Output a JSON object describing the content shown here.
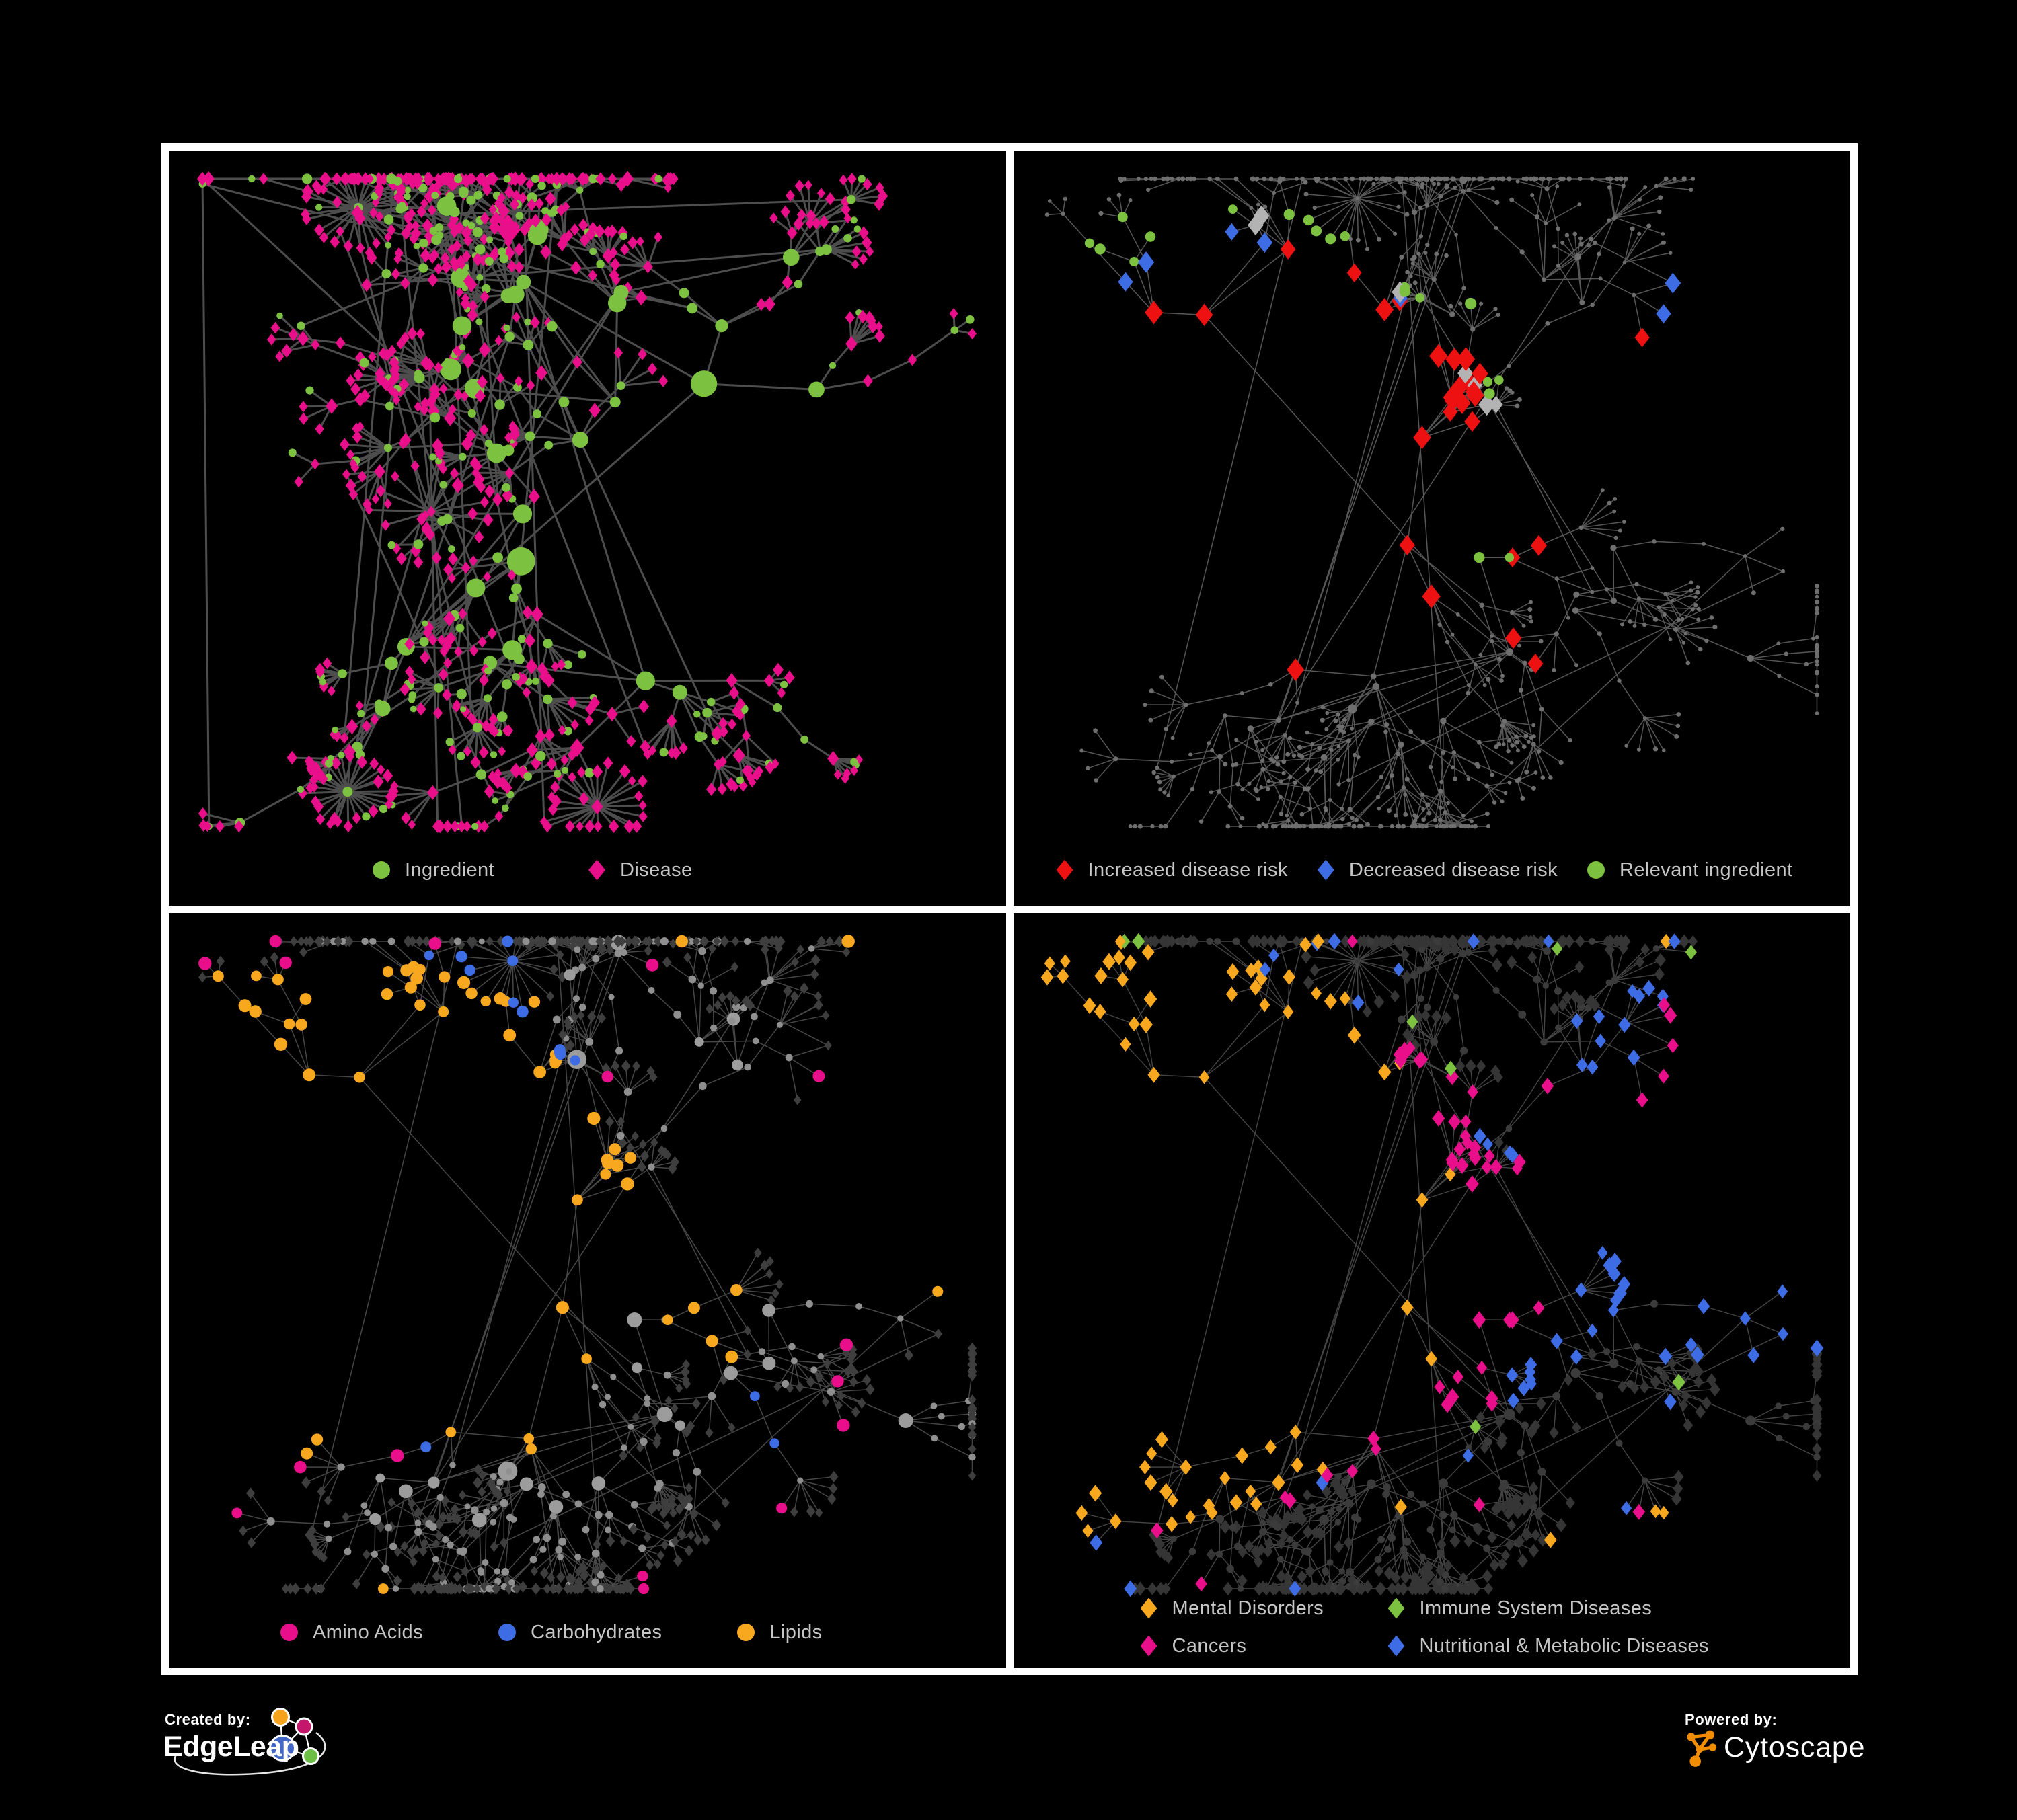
{
  "figure": {
    "background": "#000000",
    "frame_color": "#FFFFFF",
    "legend_text_color": "#C6C6C6"
  },
  "palette": {
    "green": "#7DC141",
    "pink": "#E90F8B",
    "red": "#ED1111",
    "blue": "#3D6CE5",
    "orange": "#F7A81E",
    "silver": "#B3B3B3",
    "gray_light": "#9C9C9C",
    "gray_dark": "#3B3B3B"
  },
  "panels": [
    {
      "id": "ingredient-disease-network",
      "legend": {
        "items": [
          {
            "label": "Ingredient",
            "shape": "circle",
            "color": "#7DC141"
          },
          {
            "label": "Disease",
            "shape": "diamond",
            "color": "#E90F8B"
          }
        ]
      },
      "network": {
        "seed": 12,
        "clusters": 9,
        "hubs": [
          2,
          5
        ],
        "branches": [
          2,
          5
        ],
        "chain": [
          1,
          3
        ],
        "fan": [
          2,
          8
        ],
        "big_fan_prob": 0.055,
        "big_fan": [
          15,
          32
        ],
        "step": [
          36,
          74
        ],
        "cross": 24,
        "tendrils": 6,
        "edge": {
          "color": "#6E6E6E",
          "width": 3,
          "opacity": 0.7
        },
        "hub": [
          {
            "shape": "circle",
            "color": "#7DC141",
            "rmin": 7,
            "rmax": 16,
            "p": 0.85
          },
          {
            "shape": "diamond",
            "color": "#E90F8B",
            "rmin": 7,
            "rmax": 11,
            "p": 0.15
          }
        ],
        "chain_nodes": [
          {
            "shape": "circle",
            "color": "#7DC141",
            "rmin": 5,
            "rmax": 8,
            "p": 0.48
          },
          {
            "shape": "diamond",
            "color": "#E90F8B",
            "rmin": 5.5,
            "rmax": 8,
            "p": 0.52
          }
        ],
        "leaf": [
          {
            "shape": "diamond",
            "color": "#E90F8B",
            "rmin": 5,
            "rmax": 7,
            "p": 0.84
          },
          {
            "shape": "circle",
            "color": "#7DC141",
            "rmin": 4.5,
            "rmax": 6.5,
            "p": 0.16
          }
        ],
        "highlights": []
      }
    },
    {
      "id": "disease-risk-network",
      "legend": {
        "items": [
          {
            "label": "Increased disease risk",
            "shape": "diamond",
            "color": "#ED1111"
          },
          {
            "label": "Decreased disease risk",
            "shape": "diamond",
            "color": "#3D6CE5"
          },
          {
            "label": "Relevant ingredient",
            "shape": "circle",
            "color": "#7DC141"
          }
        ]
      },
      "network": {
        "seed": 31,
        "clusters": 8,
        "hubs": [
          2,
          4
        ],
        "branches": [
          2,
          5
        ],
        "chain": [
          1,
          3
        ],
        "fan": [
          2,
          7
        ],
        "big_fan_prob": 0.05,
        "big_fan": [
          14,
          28
        ],
        "step": [
          40,
          85
        ],
        "cross": 10,
        "tendrils": 8,
        "edge": {
          "color": "#7C7C7C",
          "width": 1.5,
          "opacity": 0.7
        },
        "hub": [
          {
            "shape": "circle",
            "color": "#6E6E6E",
            "rmin": 3.2,
            "rmax": 5.5,
            "p": 1
          }
        ],
        "chain_nodes": [
          {
            "shape": "circle",
            "color": "#6E6E6E",
            "rmin": 2.8,
            "rmax": 3.6,
            "p": 1
          }
        ],
        "leaf": [
          {
            "shape": "circle",
            "color": "#6E6E6E",
            "rmin": 2.8,
            "rmax": 3.6,
            "p": 1
          }
        ],
        "highlights": [
          {
            "shape": "diamond",
            "color": "#ED1111",
            "r": 10.5,
            "groups": [
              [
                0.3,
                0.33,
                0.05,
                6
              ],
              [
                0.42,
                0.38,
                0.06,
                7
              ],
              [
                0.52,
                0.33,
                0.05,
                5
              ],
              [
                0.36,
                0.5,
                0.04,
                4
              ],
              [
                0.56,
                0.47,
                0.05,
                3
              ],
              [
                0.63,
                0.76,
                0.03,
                2
              ],
              [
                0.7,
                0.3,
                0.02,
                1
              ]
            ]
          },
          {
            "shape": "diamond",
            "color": "#3D6CE5",
            "r": 9.5,
            "groups": [
              [
                0.3,
                0.36,
                0.035,
                5
              ],
              [
                0.88,
                0.26,
                0.012,
                2
              ]
            ]
          },
          {
            "shape": "diamond",
            "color": "#B3B3B3",
            "r": 9.5,
            "groups": [
              [
                0.27,
                0.29,
                0.02,
                2
              ],
              [
                0.45,
                0.45,
                0.06,
                4
              ],
              [
                0.56,
                0.4,
                0.02,
                1
              ]
            ]
          },
          {
            "shape": "circle",
            "color": "#7DC141",
            "r": 7.5,
            "groups": [
              [
                0.3,
                0.3,
                0.06,
                8
              ],
              [
                0.45,
                0.38,
                0.07,
                7
              ],
              [
                0.2,
                0.4,
                0.05,
                3
              ],
              [
                0.55,
                0.55,
                0.05,
                2
              ],
              [
                0.12,
                0.35,
                0.02,
                1
              ]
            ]
          }
        ]
      }
    },
    {
      "id": "nutrient-class-network",
      "legend": {
        "items": [
          {
            "label": "Amino Acids",
            "shape": "circle",
            "color": "#E90F8B"
          },
          {
            "label": "Carbohydrates",
            "shape": "circle",
            "color": "#3D6CE5"
          },
          {
            "label": "Lipids",
            "shape": "circle",
            "color": "#F7A81E"
          }
        ]
      },
      "network": {
        "seed": 31,
        "clusters": 8,
        "hubs": [
          2,
          4
        ],
        "branches": [
          2,
          5
        ],
        "chain": [
          1,
          3
        ],
        "fan": [
          2,
          7
        ],
        "big_fan_prob": 0.05,
        "big_fan": [
          14,
          28
        ],
        "step": [
          40,
          85
        ],
        "cross": 10,
        "tendrils": 8,
        "edge": {
          "color": "#8D8D8D",
          "width": 1.5,
          "opacity": 0.5
        },
        "hub": [
          {
            "shape": "circle",
            "color": "#9C9C9C",
            "rmin": 6.5,
            "rmax": 12,
            "p": 1
          }
        ],
        "chain_nodes": [
          {
            "shape": "circle",
            "color": "#8F8F8F",
            "rmin": 4.5,
            "rmax": 6,
            "p": 1
          }
        ],
        "leaf": [
          {
            "shape": "diamond",
            "color": "#3E3E3E",
            "rmin": 4.8,
            "rmax": 6,
            "p": 1
          }
        ],
        "highlights": [
          {
            "shape": "circle",
            "color": "#F7A81E",
            "r": 8.5,
            "groups": [
              [
                0.33,
                0.2,
                0.05,
                16
              ],
              [
                0.25,
                0.33,
                0.07,
                18
              ],
              [
                0.42,
                0.47,
                0.06,
                8
              ],
              [
                0.63,
                0.6,
                0.03,
                5
              ],
              [
                0.5,
                0.5,
                0.3,
                10
              ]
            ]
          },
          {
            "shape": "circle",
            "color": "#3D6CE5",
            "r": 8,
            "groups": [
              [
                0.36,
                0.185,
                0.035,
                9
              ],
              [
                0.5,
                0.45,
                0.25,
                5
              ]
            ]
          },
          {
            "shape": "circle",
            "color": "#E90F8B",
            "r": 8.5,
            "groups": [
              [
                0.5,
                0.55,
                0.33,
                16
              ]
            ]
          }
        ]
      }
    },
    {
      "id": "disease-class-network",
      "legend": {
        "items": [
          {
            "label": "Mental Disorders",
            "shape": "diamond",
            "color": "#F7A81E"
          },
          {
            "label": "Immune System Diseases",
            "shape": "diamond",
            "color": "#7DC141"
          },
          {
            "label": "Cancers",
            "shape": "diamond",
            "color": "#E90F8B"
          },
          {
            "label": "Nutritional & Metabolic Diseases",
            "shape": "diamond",
            "color": "#3D6CE5"
          }
        ]
      },
      "network": {
        "seed": 31,
        "clusters": 8,
        "hubs": [
          2,
          4
        ],
        "branches": [
          2,
          5
        ],
        "chain": [
          1,
          3
        ],
        "fan": [
          2,
          7
        ],
        "big_fan_prob": 0.05,
        "big_fan": [
          14,
          28
        ],
        "step": [
          40,
          85
        ],
        "cross": 10,
        "tendrils": 8,
        "edge": {
          "color": "#9A9A9A",
          "width": 1.4,
          "opacity": 0.45
        },
        "hub": [
          {
            "shape": "circle",
            "color": "#3B3B3B",
            "rmin": 5,
            "rmax": 8,
            "p": 1
          }
        ],
        "chain_nodes": [
          {
            "shape": "circle",
            "color": "#3B3B3B",
            "rmin": 4.5,
            "rmax": 6,
            "p": 1
          }
        ],
        "leaf": [
          {
            "shape": "diamond",
            "color": "#353535",
            "rmin": 5.8,
            "rmax": 7,
            "p": 1
          }
        ],
        "highlights": [
          {
            "shape": "diamond",
            "color": "#F7A81E",
            "r": 7.5,
            "groups": [
              [
                0.16,
                0.48,
                0.065,
                55
              ],
              [
                0.35,
                0.12,
                0.04,
                6
              ],
              [
                0.5,
                0.5,
                0.35,
                10
              ]
            ]
          },
          {
            "shape": "diamond",
            "color": "#E90F8B",
            "r": 7.5,
            "groups": [
              [
                0.43,
                0.52,
                0.08,
                35
              ],
              [
                0.5,
                0.3,
                0.05,
                8
              ],
              [
                0.92,
                0.25,
                0.025,
                5
              ],
              [
                0.5,
                0.6,
                0.3,
                8
              ]
            ]
          },
          {
            "shape": "diamond",
            "color": "#3D6CE5",
            "r": 7.5,
            "groups": [
              [
                0.6,
                0.56,
                0.045,
                18
              ],
              [
                0.76,
                0.3,
                0.07,
                14
              ],
              [
                0.45,
                0.08,
                0.1,
                8
              ],
              [
                0.85,
                0.5,
                0.1,
                6
              ],
              [
                0.5,
                0.5,
                0.35,
                14
              ]
            ]
          },
          {
            "shape": "diamond",
            "color": "#7DC141",
            "r": 7.5,
            "groups": [
              [
                0.45,
                0.4,
                0.3,
                8
              ]
            ]
          }
        ]
      }
    }
  ],
  "footer": {
    "created_by": {
      "label": "Created by:",
      "brand": "EdgeLeap"
    },
    "powered_by": {
      "label": "Powered by:",
      "brand": "Cytoscape"
    },
    "edgeleap_colors": {
      "orange": "#F6A21D",
      "magenta": "#C4176B",
      "blue": "#4468C8",
      "green": "#6CBE45"
    },
    "cytoscape_orange": "#F28C00"
  }
}
